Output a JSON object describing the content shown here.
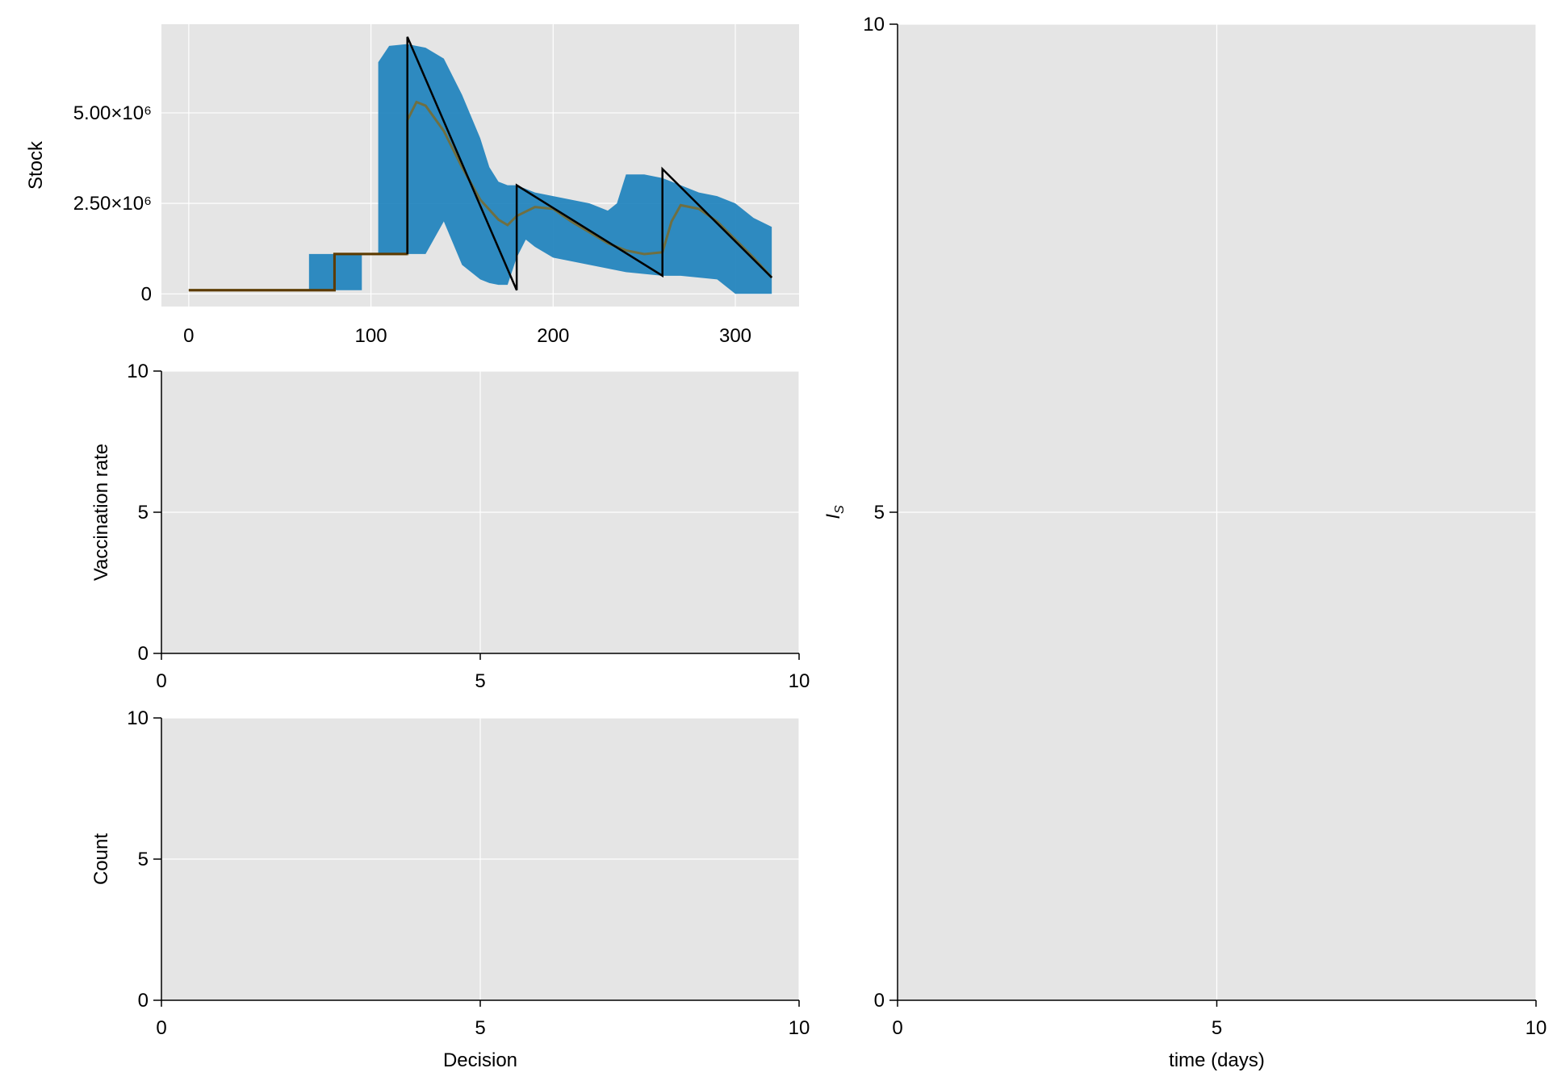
{
  "colors": {
    "panel_bg": "#e5e5e5",
    "grid": "#ffffff",
    "band": "#1a80bb",
    "mean_line": "#7a6a2a",
    "trend": "#5c3a00",
    "actual": "#000000"
  },
  "chart_data": [
    {
      "id": "stock",
      "type": "area",
      "title": "",
      "xlabel": "",
      "ylabel": "Stock",
      "xlim": [
        -15,
        335
      ],
      "ylim": [
        -350000,
        7450000
      ],
      "x_ticks": [
        0,
        100,
        200,
        300
      ],
      "y_ticks": [
        0,
        2500000,
        5000000
      ],
      "y_tick_labels": [
        "0",
        "2.50×10⁶",
        "5.00×10⁶"
      ],
      "grid": true,
      "band": {
        "x": [
          66,
          66,
          95,
          95,
          104,
          104,
          110,
          120,
          130,
          140,
          150,
          160,
          165,
          170,
          175,
          180,
          185,
          190,
          200,
          210,
          220,
          230,
          235,
          240,
          250,
          260,
          270,
          280,
          290,
          300,
          310,
          320
        ],
        "upper": [
          1100000,
          1100000,
          1100000,
          1100000,
          1100000,
          6400000,
          6850000,
          6900000,
          6800000,
          6500000,
          5500000,
          4300000,
          3500000,
          3100000,
          3000000,
          3000000,
          2900000,
          2800000,
          2700000,
          2600000,
          2500000,
          2300000,
          2500000,
          3300000,
          3300000,
          3200000,
          3000000,
          2800000,
          2700000,
          2500000,
          2100000,
          1850000
        ],
        "lower": [
          100000,
          100000,
          100000,
          1100000,
          1100000,
          1100000,
          1100000,
          1100000,
          1100000,
          2000000,
          800000,
          400000,
          300000,
          250000,
          250000,
          1000000,
          1500000,
          1300000,
          1000000,
          900000,
          800000,
          700000,
          650000,
          600000,
          550000,
          500000,
          500000,
          450000,
          400000,
          0,
          0,
          0
        ]
      },
      "mean": {
        "x": [
          0,
          66,
          80,
          80,
          120,
          120,
          125,
          130,
          140,
          150,
          160,
          170,
          175,
          180,
          190,
          200,
          210,
          220,
          230,
          240,
          250,
          260,
          265,
          270,
          280,
          290,
          300,
          310,
          320
        ],
        "y": [
          100000,
          100000,
          100000,
          1100000,
          1100000,
          4800000,
          5300000,
          5200000,
          4500000,
          3500000,
          2600000,
          2050000,
          1900000,
          2150000,
          2400000,
          2350000,
          2000000,
          1700000,
          1400000,
          1200000,
          1100000,
          1150000,
          2000000,
          2450000,
          2350000,
          2000000,
          1500000,
          1000000,
          450000
        ]
      },
      "actual": {
        "x": [
          0,
          80,
          80,
          120,
          120,
          180,
          180,
          260,
          260,
          320
        ],
        "y": [
          100000,
          100000,
          1100000,
          1100000,
          7100000,
          100000,
          3000000,
          500000,
          3450000,
          450000
        ]
      }
    },
    {
      "id": "vaccination",
      "type": "line",
      "title": "",
      "xlabel": "",
      "ylabel": "Vaccination rate",
      "xlim": [
        0,
        10
      ],
      "ylim": [
        0,
        10
      ],
      "x_ticks": [
        0,
        5,
        10
      ],
      "y_ticks": [
        0,
        5,
        10
      ],
      "grid": true,
      "series": []
    },
    {
      "id": "count",
      "type": "bar",
      "title": "",
      "xlabel": "Decision",
      "ylabel": "Count",
      "xlim": [
        0,
        10
      ],
      "ylim": [
        0,
        10
      ],
      "x_ticks": [
        0,
        5,
        10
      ],
      "y_ticks": [
        0,
        5,
        10
      ],
      "grid": true,
      "series": []
    },
    {
      "id": "infections",
      "type": "line",
      "title": "",
      "xlabel": "time (days)",
      "ylabel_main": "I",
      "ylabel_sub": "S",
      "xlim": [
        0,
        10
      ],
      "ylim": [
        0,
        10
      ],
      "x_ticks": [
        0,
        5,
        10
      ],
      "y_ticks": [
        0,
        5,
        10
      ],
      "grid": true,
      "series": []
    }
  ]
}
